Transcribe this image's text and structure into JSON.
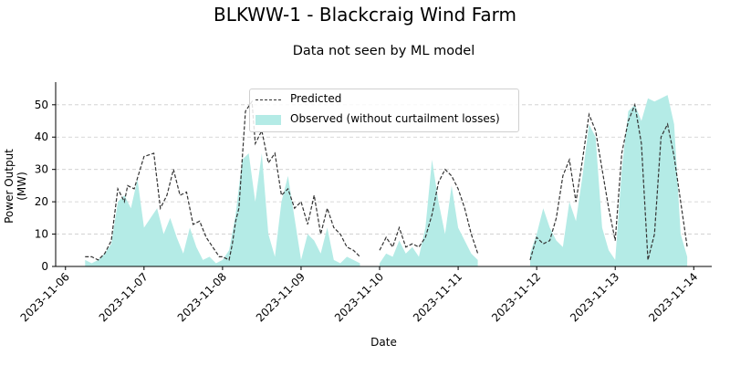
{
  "suptitle": "BLKWW-1 - Blackcraig Wind Farm",
  "chart_data": {
    "type": "line",
    "title": "Data not seen by ML model",
    "xlabel": "Date",
    "ylabel": "Power Output (MW)",
    "xlim": [
      "2023-11-05T21:00",
      "2023-11-14T05:30"
    ],
    "ylim": [
      0,
      57
    ],
    "x_ticks": [
      "2023-11-06",
      "2023-11-07",
      "2023-11-08",
      "2023-11-09",
      "2023-11-10",
      "2023-11-11",
      "2023-11-12",
      "2023-11-13",
      "2023-11-14"
    ],
    "y_ticks": [
      0,
      10,
      20,
      30,
      40,
      50
    ],
    "grid": "y-dashed",
    "legend_position": "upper-center",
    "series": [
      {
        "name": "Predicted",
        "style": "dashed-line",
        "color": "#333333",
        "segments": [
          {
            "x": [
              "2023-11-06T06:00",
              "2023-11-06T08:00",
              "2023-11-06T10:00",
              "2023-11-06T12:00",
              "2023-11-06T14:00",
              "2023-11-06T16:00",
              "2023-11-06T18:00",
              "2023-11-06T19:00",
              "2023-11-06T21:00",
              "2023-11-07T00:00",
              "2023-11-07T03:00",
              "2023-11-07T05:00",
              "2023-11-07T07:00",
              "2023-11-07T09:00",
              "2023-11-07T11:00",
              "2023-11-07T13:00",
              "2023-11-07T15:00",
              "2023-11-07T17:00",
              "2023-11-07T19:00",
              "2023-11-07T21:00",
              "2023-11-07T23:00",
              "2023-11-08T00:00",
              "2023-11-08T02:00",
              "2023-11-08T03:00",
              "2023-11-08T04:00",
              "2023-11-08T05:00",
              "2023-11-08T07:00",
              "2023-11-08T09:00",
              "2023-11-08T10:00",
              "2023-11-08T12:00",
              "2023-11-08T14:00",
              "2023-11-08T16:00",
              "2023-11-08T18:00",
              "2023-11-08T20:00",
              "2023-11-08T22:00",
              "2023-11-09T00:00",
              "2023-11-09T02:00",
              "2023-11-09T04:00",
              "2023-11-09T06:00",
              "2023-11-09T08:00",
              "2023-11-09T10:00",
              "2023-11-09T12:00",
              "2023-11-09T14:00",
              "2023-11-09T16:00",
              "2023-11-09T18:00"
            ],
            "y": [
              3,
              3,
              2,
              4,
              8,
              24,
              20,
              25,
              24,
              34,
              35,
              18,
              22,
              30,
              22,
              23,
              13,
              14,
              9,
              6,
              3,
              3,
              2,
              7,
              14,
              18,
              48,
              51,
              38,
              42,
              32,
              35,
              22,
              24,
              18,
              20,
              13,
              22,
              10,
              18,
              12,
              10,
              6,
              5,
              3
            ]
          },
          {
            "x": [
              "2023-11-10T00:00",
              "2023-11-10T02:00",
              "2023-11-10T04:00",
              "2023-11-10T06:00",
              "2023-11-10T08:00",
              "2023-11-10T10:00",
              "2023-11-10T12:00",
              "2023-11-10T14:00",
              "2023-11-10T16:00",
              "2023-11-10T18:00",
              "2023-11-10T20:00",
              "2023-11-10T22:00",
              "2023-11-11T00:00",
              "2023-11-11T02:00",
              "2023-11-11T04:00",
              "2023-11-11T06:00"
            ],
            "y": [
              5,
              9,
              6,
              12,
              6,
              7,
              6,
              9,
              16,
              26,
              30,
              28,
              24,
              18,
              10,
              4
            ]
          },
          {
            "x": [
              "2023-11-11T22:00",
              "2023-11-12T00:00",
              "2023-11-12T02:00",
              "2023-11-12T04:00",
              "2023-11-12T06:00",
              "2023-11-12T08:00",
              "2023-11-12T10:00",
              "2023-11-12T12:00",
              "2023-11-12T14:00",
              "2023-11-12T16:00",
              "2023-11-12T18:00",
              "2023-11-12T20:00",
              "2023-11-12T22:00",
              "2023-11-13T00:00",
              "2023-11-13T02:00",
              "2023-11-13T04:00",
              "2023-11-13T06:00",
              "2023-11-13T08:00",
              "2023-11-13T10:00",
              "2023-11-13T12:00",
              "2023-11-13T14:00",
              "2023-11-13T16:00",
              "2023-11-13T18:00",
              "2023-11-13T20:00",
              "2023-11-13T22:00"
            ],
            "y": [
              2,
              9,
              7,
              8,
              15,
              28,
              33,
              20,
              33,
              47,
              42,
              30,
              18,
              8,
              35,
              45,
              50,
              38,
              2,
              10,
              40,
              44,
              34,
              20,
              6
            ]
          }
        ]
      },
      {
        "name": "Observed (without curtailment losses)",
        "style": "filled-area",
        "color": "#b4ebe6",
        "segments": [
          {
            "x": [
              "2023-11-06T06:00",
              "2023-11-06T08:00",
              "2023-11-06T10:00",
              "2023-11-06T12:00",
              "2023-11-06T14:00",
              "2023-11-06T16:00",
              "2023-11-06T18:00",
              "2023-11-06T20:00",
              "2023-11-06T22:00",
              "2023-11-07T00:00",
              "2023-11-07T02:00",
              "2023-11-07T04:00",
              "2023-11-07T06:00",
              "2023-11-07T08:00",
              "2023-11-07T10:00",
              "2023-11-07T12:00",
              "2023-11-07T14:00",
              "2023-11-07T16:00",
              "2023-11-07T18:00",
              "2023-11-07T20:00",
              "2023-11-07T22:00",
              "2023-11-08T00:00",
              "2023-11-08T02:00",
              "2023-11-08T04:00",
              "2023-11-08T06:00",
              "2023-11-08T08:00",
              "2023-11-08T10:00",
              "2023-11-08T12:00",
              "2023-11-08T14:00",
              "2023-11-08T16:00",
              "2023-11-08T18:00",
              "2023-11-08T20:00",
              "2023-11-08T22:00",
              "2023-11-09T00:00",
              "2023-11-09T02:00",
              "2023-11-09T04:00",
              "2023-11-09T06:00",
              "2023-11-09T08:00",
              "2023-11-09T10:00",
              "2023-11-09T12:00",
              "2023-11-09T14:00",
              "2023-11-09T16:00",
              "2023-11-09T18:00"
            ],
            "y": [
              2,
              1,
              2,
              4,
              7,
              20,
              22,
              18,
              27,
              12,
              15,
              18,
              10,
              15,
              9,
              4,
              12,
              6,
              2,
              3,
              1,
              2,
              5,
              16,
              33,
              35,
              20,
              35,
              10,
              3,
              20,
              28,
              15,
              2,
              10,
              8,
              4,
              12,
              2,
              1,
              3,
              2,
              1
            ]
          },
          {
            "x": [
              "2023-11-10T00:00",
              "2023-11-10T02:00",
              "2023-11-10T04:00",
              "2023-11-10T06:00",
              "2023-11-10T08:00",
              "2023-11-10T10:00",
              "2023-11-10T12:00",
              "2023-11-10T14:00",
              "2023-11-10T16:00",
              "2023-11-10T18:00",
              "2023-11-10T20:00",
              "2023-11-10T22:00",
              "2023-11-11T00:00",
              "2023-11-11T02:00",
              "2023-11-11T04:00",
              "2023-11-11T06:00"
            ],
            "y": [
              1,
              4,
              3,
              8,
              4,
              6,
              3,
              12,
              33,
              20,
              10,
              25,
              12,
              8,
              4,
              2
            ]
          },
          {
            "x": [
              "2023-11-11T22:00",
              "2023-11-12T00:00",
              "2023-11-12T02:00",
              "2023-11-12T04:00",
              "2023-11-12T06:00",
              "2023-11-12T08:00",
              "2023-11-12T10:00",
              "2023-11-12T12:00",
              "2023-11-12T14:00",
              "2023-11-12T16:00",
              "2023-11-12T18:00",
              "2023-11-12T20:00",
              "2023-11-12T22:00",
              "2023-11-13T00:00",
              "2023-11-13T02:00",
              "2023-11-13T04:00",
              "2023-11-13T06:00",
              "2023-11-13T08:00",
              "2023-11-13T10:00",
              "2023-11-13T12:00",
              "2023-11-13T14:00",
              "2023-11-13T16:00",
              "2023-11-13T18:00",
              "2023-11-13T20:00",
              "2023-11-13T22:00"
            ],
            "y": [
              4,
              10,
              18,
              12,
              8,
              6,
              20,
              14,
              28,
              44,
              40,
              12,
              5,
              2,
              30,
              48,
              50,
              45,
              52,
              51,
              52,
              53,
              44,
              10,
              3
            ]
          }
        ]
      }
    ]
  }
}
